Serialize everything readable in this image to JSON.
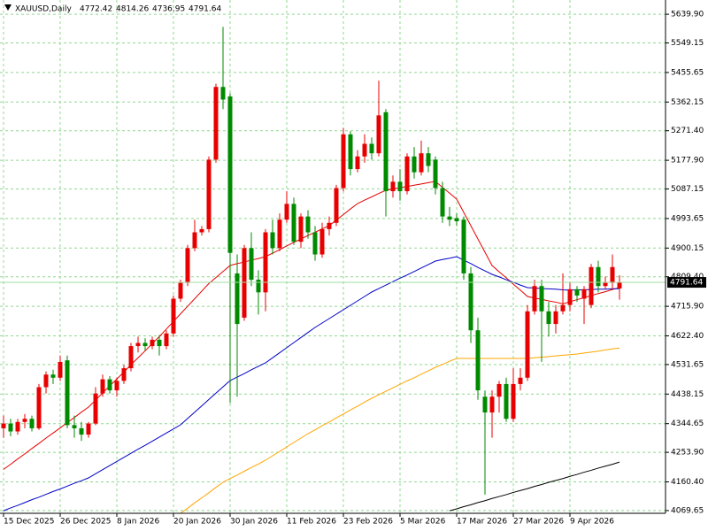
{
  "chart_data": {
    "type": "candlestick",
    "symbol": "XAUUSD,Daily",
    "categories": [
      "15 Dec 2025",
      null,
      null,
      null,
      null,
      null,
      null,
      null,
      "26 Dec 2025",
      null,
      null,
      null,
      null,
      null,
      null,
      null,
      "8 Jan 2026",
      null,
      null,
      null,
      null,
      null,
      null,
      null,
      "20 Jan 2026",
      null,
      null,
      null,
      null,
      null,
      null,
      null,
      "30 Jan 2026",
      null,
      null,
      null,
      null,
      null,
      null,
      null,
      "11 Feb 2026",
      null,
      null,
      null,
      null,
      null,
      null,
      null,
      "23 Feb 2026",
      null,
      null,
      null,
      null,
      null,
      null,
      null,
      "5 Mar 2026",
      null,
      null,
      null,
      null,
      null,
      null,
      null,
      "17 Mar 2026",
      null,
      null,
      null,
      null,
      null,
      null,
      null,
      "27 Mar 2026",
      null,
      null,
      null,
      null,
      null,
      null,
      null,
      "9 Apr 2026",
      null,
      null,
      null,
      null,
      null,
      null,
      null
    ],
    "open": [
      4330,
      4345,
      4320,
      4350,
      4360,
      4330,
      4460,
      4500,
      4490,
      4545,
      4340,
      4330,
      4310,
      4345,
      4440,
      4485,
      4450,
      4480,
      4520,
      4590,
      4600,
      4590,
      4610,
      4590,
      4630,
      4740,
      4790,
      4900,
      4950,
      4960,
      5180,
      5410,
      5380,
      4820,
      4680,
      4900,
      4800,
      4760,
      4950,
      4900,
      4990,
      5040,
      4920,
      5000,
      4950,
      4880,
      4960,
      4980,
      5090,
      5260,
      5150,
      5190,
      5230,
      5200,
      5330,
      5080,
      5110,
      5080,
      5190,
      5140,
      5200,
      5180,
      5090,
      5000,
      4995,
      4990,
      4820,
      4640,
      4430,
      4380,
      4430,
      4470,
      4360,
      4470,
      4490,
      4700,
      4780,
      4700,
      4660,
      4700,
      4720,
      4770,
      4740,
      4720,
      4840,
      4780,
      4790,
      4772.42
    ],
    "high": [
      4370,
      4360,
      4360,
      4375,
      4370,
      4470,
      4510,
      4515,
      4560,
      4560,
      4370,
      4350,
      4350,
      4460,
      4500,
      4495,
      4490,
      4530,
      4600,
      4620,
      4615,
      4620,
      4625,
      4640,
      4750,
      4800,
      4910,
      4990,
      4970,
      5190,
      5420,
      5600,
      5390,
      4880,
      4910,
      4950,
      4830,
      4960,
      4990,
      5010,
      5080,
      5060,
      5010,
      5020,
      4970,
      4980,
      5000,
      5100,
      5280,
      5270,
      5210,
      5260,
      5250,
      5430,
      5340,
      5130,
      5150,
      5200,
      5220,
      5240,
      5220,
      5190,
      5110,
      5030,
      5010,
      5000,
      4840,
      4680,
      4450,
      4450,
      4480,
      4490,
      4520,
      4520,
      4720,
      4800,
      4800,
      4730,
      4720,
      4820,
      4790,
      4780,
      4780,
      4850,
      4860,
      4810,
      4880,
      4814.26
    ],
    "low": [
      4300,
      4305,
      4310,
      4330,
      4320,
      4325,
      4440,
      4470,
      4480,
      4330,
      4300,
      4290,
      4300,
      4340,
      4430,
      4440,
      4430,
      4470,
      4510,
      4570,
      4575,
      4580,
      4560,
      4580,
      4620,
      4730,
      4780,
      4890,
      4940,
      4950,
      5170,
      5340,
      4410,
      4430,
      4670,
      4780,
      4690,
      4700,
      4880,
      4890,
      4980,
      4910,
      4900,
      4930,
      4860,
      4870,
      4940,
      4970,
      5080,
      5130,
      5140,
      5170,
      5180,
      5190,
      5000,
      5060,
      5050,
      5070,
      5120,
      5130,
      5140,
      5070,
      4980,
      4970,
      4970,
      4800,
      4600,
      4420,
      4120,
      4300,
      4380,
      4350,
      4350,
      4450,
      4480,
      4690,
      4540,
      4620,
      4630,
      4690,
      4700,
      4730,
      4660,
      4710,
      4760,
      4770,
      4770,
      4736.95
    ],
    "close": [
      4345,
      4320,
      4350,
      4360,
      4330,
      4460,
      4500,
      4490,
      4540,
      4340,
      4330,
      4310,
      4345,
      4440,
      4485,
      4450,
      4480,
      4520,
      4590,
      4600,
      4590,
      4610,
      4590,
      4630,
      4740,
      4790,
      4900,
      4950,
      4960,
      5180,
      5410,
      5370,
      4885,
      4660,
      4900,
      4800,
      4760,
      4950,
      4900,
      4990,
      5040,
      4920,
      5000,
      4950,
      4880,
      4960,
      4980,
      5090,
      5260,
      5150,
      5190,
      5230,
      5200,
      5320,
      5080,
      5110,
      5080,
      5190,
      5140,
      5200,
      5160,
      5090,
      5000,
      4990,
      4985,
      4820,
      4640,
      4450,
      4380,
      4430,
      4470,
      4360,
      4470,
      4490,
      4700,
      4780,
      4700,
      4660,
      4700,
      4720,
      4770,
      4750,
      4770,
      4840,
      4780,
      4790,
      4840,
      4791.64
    ],
    "up_color": "#e80000",
    "down_color": "#008a00",
    "series": [
      {
        "color": "#e60000",
        "values": [
          4200,
          4216,
          4233,
          4249,
          4266,
          4282,
          4299,
          4315,
          4331,
          4348,
          4364,
          4381,
          4397,
          4419,
          4442,
          4464,
          4486,
          4508,
          4531,
          4553,
          4575,
          4598,
          4620,
          4644,
          4668,
          4692,
          4716,
          4740,
          4764,
          4788,
          4807,
          4826,
          4845,
          4851,
          4856,
          4862,
          4867,
          4873,
          4884,
          4895,
          4907,
          4918,
          4929,
          4940,
          4950,
          4961,
          4971,
          4989,
          5006,
          5024,
          5041,
          5052,
          5062,
          5073,
          5083,
          5087,
          5091,
          5095,
          5099,
          5103,
          5107,
          5111,
          5092,
          5074,
          5055,
          5013,
          4971,
          4929,
          4887,
          4845,
          4825,
          4806,
          4786,
          4767,
          4747,
          4742,
          4738,
          4733,
          4729,
          4724,
          4730,
          4737,
          4743,
          4750,
          4756,
          4762,
          4769,
          4775
        ]
      },
      {
        "color": "#0000c8",
        "values": [
          4069,
          4078,
          4086,
          4095,
          4104,
          4112,
          4121,
          4130,
          4138,
          4147,
          4156,
          4164,
          4173,
          4186,
          4199,
          4212,
          4225,
          4238,
          4251,
          4264,
          4276,
          4289,
          4302,
          4315,
          4328,
          4341,
          4361,
          4381,
          4401,
          4421,
          4441,
          4461,
          4481,
          4492,
          4503,
          4515,
          4526,
          4537,
          4553,
          4569,
          4585,
          4601,
          4617,
          4633,
          4649,
          4663,
          4677,
          4691,
          4705,
          4719,
          4733,
          4747,
          4761,
          4772,
          4783,
          4794,
          4805,
          4815,
          4826,
          4837,
          4848,
          4859,
          4864,
          4868,
          4873,
          4862,
          4851,
          4839,
          4828,
          4817,
          4809,
          4800,
          4792,
          4783,
          4775,
          4774,
          4772,
          4771,
          4770,
          4768,
          4767,
          4768,
          4768,
          4769,
          4770,
          4770,
          4771,
          4772
        ]
      },
      {
        "color": "#ffa500",
        "values": [
          null,
          null,
          null,
          null,
          null,
          null,
          null,
          null,
          null,
          null,
          null,
          null,
          null,
          null,
          null,
          null,
          null,
          null,
          null,
          null,
          null,
          null,
          null,
          null,
          null,
          4061,
          4077,
          4094,
          4110,
          4126,
          4143,
          4159,
          4171,
          4182,
          4194,
          4206,
          4217,
          4229,
          4243,
          4257,
          4271,
          4285,
          4299,
          4313,
          4325,
          4338,
          4350,
          4363,
          4375,
          4388,
          4400,
          4413,
          4425,
          4436,
          4447,
          4458,
          4469,
          4480,
          4490,
          4501,
          4512,
          4523,
          4532,
          4542,
          4551,
          4551,
          4551,
          4551,
          4551,
          4551,
          4551,
          4551,
          4551,
          4551,
          4551,
          4553,
          4555,
          4557,
          4559,
          4561,
          4563,
          4565,
          4568,
          4571,
          4574,
          4578,
          4581,
          4584
        ]
      },
      {
        "color": "#000000",
        "values": [
          null,
          null,
          null,
          null,
          null,
          null,
          null,
          null,
          null,
          null,
          null,
          null,
          null,
          null,
          null,
          null,
          null,
          null,
          null,
          null,
          null,
          null,
          null,
          null,
          null,
          null,
          null,
          null,
          null,
          null,
          null,
          null,
          null,
          null,
          null,
          null,
          null,
          null,
          null,
          null,
          null,
          null,
          null,
          null,
          null,
          null,
          null,
          null,
          null,
          null,
          null,
          null,
          null,
          null,
          null,
          null,
          null,
          null,
          null,
          null,
          null,
          null,
          null,
          4069,
          4075,
          4082,
          4088,
          4095,
          4101,
          4108,
          4114,
          4120,
          4127,
          4133,
          4139,
          4146,
          4152,
          4159,
          4165,
          4171,
          4178,
          4184,
          4191,
          4197,
          4204,
          4210,
          4216,
          4223
        ]
      }
    ],
    "ylim": [
      4061,
      5685
    ],
    "yticks": [
      {
        "value": 5639.9,
        "label": "5639.90"
      },
      {
        "value": 5549.15,
        "label": "5549.15"
      },
      {
        "value": 5455.65,
        "label": "5455.65"
      },
      {
        "value": 5362.15,
        "label": "5362.15"
      },
      {
        "value": 5271.4,
        "label": "5271.40"
      },
      {
        "value": 5177.9,
        "label": "5177.90"
      },
      {
        "value": 5087.15,
        "label": "5087.15"
      },
      {
        "value": 4993.65,
        "label": "4993.65"
      },
      {
        "value": 4900.15,
        "label": "4900.15"
      },
      {
        "value": 4809.4,
        "label": "4809.40"
      },
      {
        "value": 4715.9,
        "label": "4715.90"
      },
      {
        "value": 4622.4,
        "label": "4622.40"
      },
      {
        "value": 4531.65,
        "label": "4531.65"
      },
      {
        "value": 4438.15,
        "label": "4438.15"
      },
      {
        "value": 4344.65,
        "label": "4344.65"
      },
      {
        "value": 4253.9,
        "label": "4253.90"
      },
      {
        "value": 4160.4,
        "label": "4160.40"
      },
      {
        "value": 4069.65,
        "label": "4069.65"
      }
    ],
    "grid": true,
    "grid_color": "#8fd88f"
  }
}
